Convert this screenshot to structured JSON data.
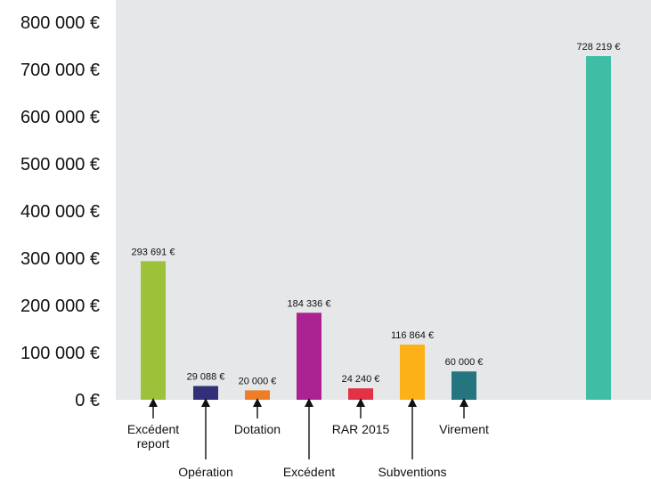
{
  "chart_data": {
    "type": "bar",
    "title": "",
    "xlabel": "",
    "ylabel": "",
    "ylim": [
      0,
      800000
    ],
    "grid": false,
    "y_ticks": [
      "0 €",
      "100 000 €",
      "200 000 €",
      "300 000 €",
      "400 000 €",
      "500 000 €",
      "600 000 €",
      "700 000 €",
      "800 000 €"
    ],
    "y_tick_values": [
      0,
      100000,
      200000,
      300000,
      400000,
      500000,
      600000,
      700000,
      800000
    ],
    "bars": [
      {
        "category": "Excédent report",
        "value": 293691,
        "value_label": "293 691 €",
        "color": "#9dc23a"
      },
      {
        "category": "Opération",
        "value": 29088,
        "value_label": "29 088 €",
        "color": "#33307a"
      },
      {
        "category": "Dotation",
        "value": 20000,
        "value_label": "20 000 €",
        "color": "#ee7d28"
      },
      {
        "category": "Excédent",
        "value": 184336,
        "value_label": "184 336 €",
        "color": "#ab2291"
      },
      {
        "category": "RAR 2015",
        "value": 24240,
        "value_label": "24 240 €",
        "color": "#e13247"
      },
      {
        "category": "Subventions",
        "value": 116864,
        "value_label": "116 864 €",
        "color": "#fbb117"
      },
      {
        "category": "Virement",
        "value": 60000,
        "value_label": "60 000 €",
        "color": "#257580"
      },
      {
        "category": "",
        "value": 728219,
        "value_label": "728 219 €",
        "color": "#3fbda5"
      }
    ],
    "category_labels": [
      {
        "lines": [
          "Excédent",
          "report"
        ],
        "bar": 0,
        "row": "upper"
      },
      {
        "lines": [
          "Opération"
        ],
        "bar": 1,
        "row": "lower"
      },
      {
        "lines": [
          "Dotation"
        ],
        "bar": 2,
        "row": "upper"
      },
      {
        "lines": [
          "Excédent"
        ],
        "bar": 3,
        "row": "lower"
      },
      {
        "lines": [
          "RAR 2015"
        ],
        "bar": 4,
        "row": "upper"
      },
      {
        "lines": [
          "Subventions"
        ],
        "bar": 5,
        "row": "lower"
      },
      {
        "lines": [
          "Virement"
        ],
        "bar": 6,
        "row": "upper"
      }
    ],
    "background_color": "#e6e7e8"
  }
}
